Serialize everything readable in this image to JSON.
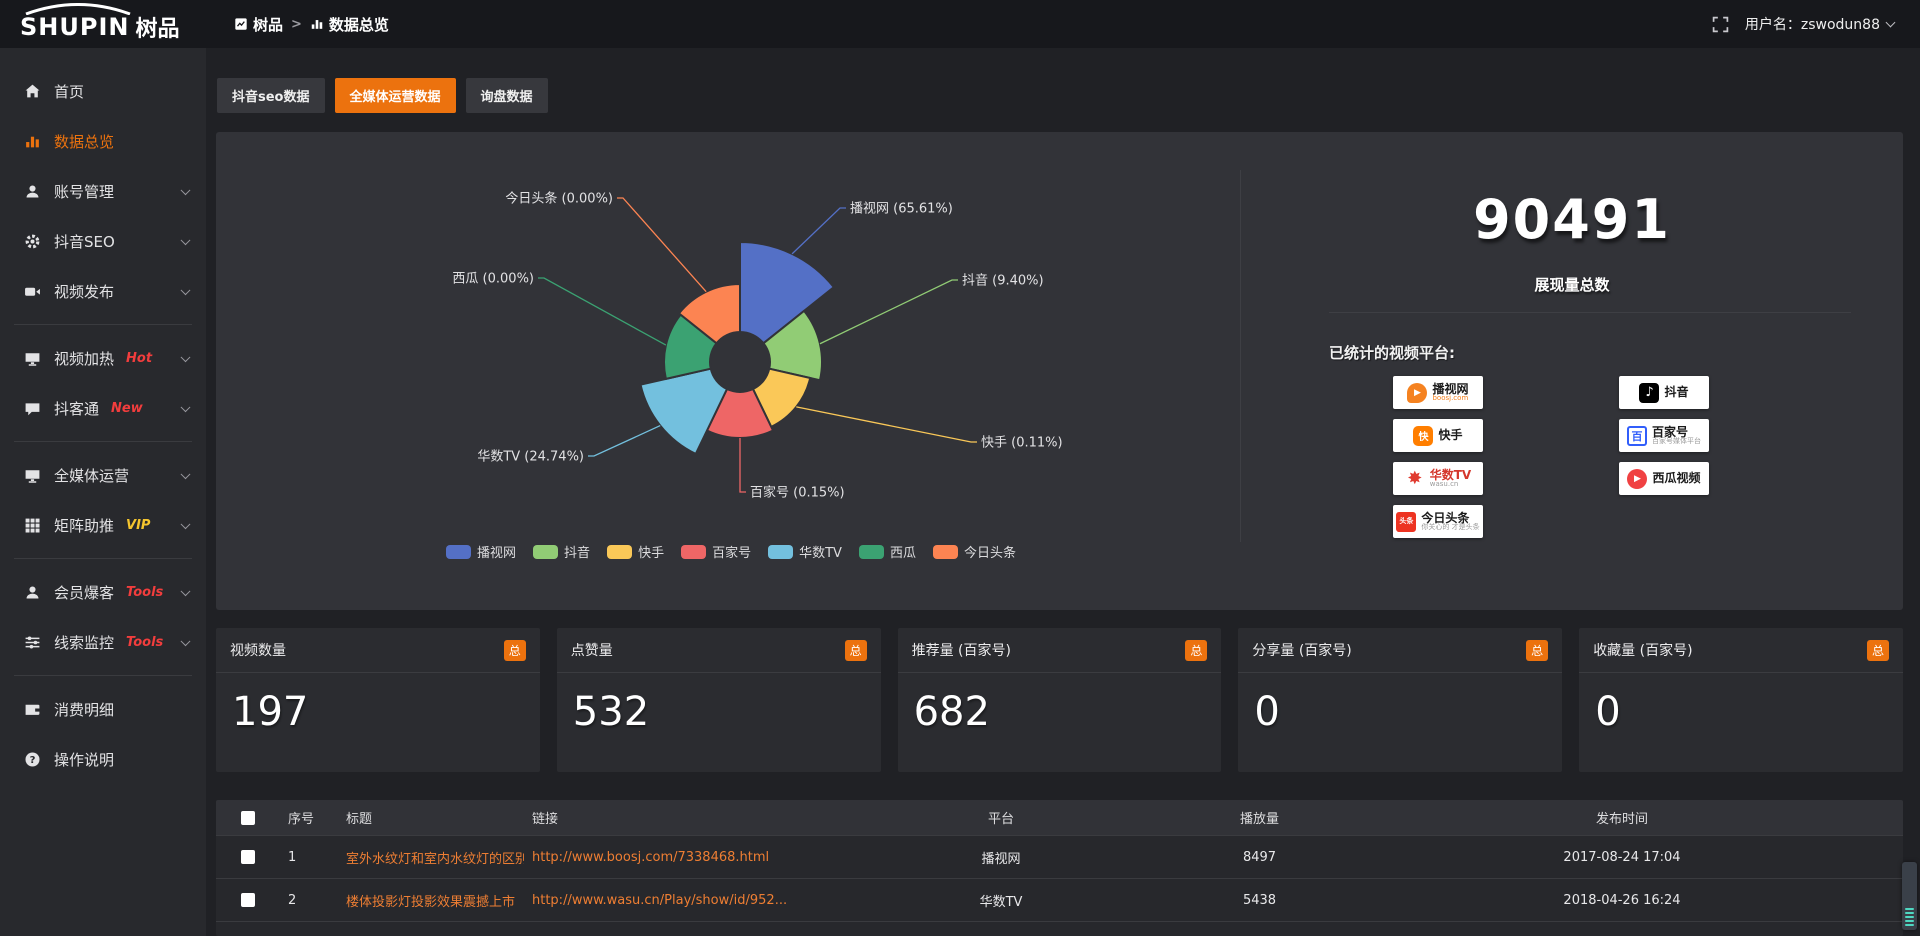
{
  "topbar": {
    "logo": {
      "text": "SHUPIN",
      "suffix": "树品"
    },
    "breadcrumb": [
      {
        "label": "树品",
        "icon": "report-icon"
      },
      {
        "label": "数据总览",
        "icon": "chart-icon"
      }
    ],
    "user_label": "用户名：zswodun88"
  },
  "sidebar": {
    "groups": [
      {
        "items": [
          {
            "icon": "home",
            "label": "首页",
            "active": false,
            "arrow": false
          },
          {
            "icon": "chart",
            "label": "数据总览",
            "active": true,
            "arrow": false
          },
          {
            "icon": "user",
            "label": "账号管理",
            "active": false,
            "arrow": true
          },
          {
            "icon": "gear",
            "label": "抖音SEO",
            "active": false,
            "arrow": true
          },
          {
            "icon": "video",
            "label": "视频发布",
            "active": false,
            "arrow": true
          }
        ]
      },
      {
        "items": [
          {
            "icon": "monitor",
            "label": "视频加热",
            "tag": "Hot",
            "tag_color": "#f23d3d",
            "arrow": true
          },
          {
            "icon": "comment",
            "label": "抖客通",
            "tag": "New",
            "tag_color": "#f23d3d",
            "arrow": true
          }
        ]
      },
      {
        "items": [
          {
            "icon": "monitor",
            "label": "全媒体运营",
            "arrow": true
          },
          {
            "icon": "grid",
            "label": "矩阵助推",
            "tag": "VIP",
            "tag_color": "#f5c52e",
            "arrow": true
          }
        ]
      },
      {
        "items": [
          {
            "icon": "user",
            "label": "会员爆客",
            "tag": "Tools",
            "tag_color": "#f23d3d",
            "arrow": true
          },
          {
            "icon": "sliders",
            "label": "线索监控",
            "tag": "Tools",
            "tag_color": "#f23d3d",
            "arrow": true
          }
        ]
      },
      {
        "items": [
          {
            "icon": "wallet",
            "label": "消费明细"
          },
          {
            "icon": "question",
            "label": "操作说明"
          }
        ]
      }
    ]
  },
  "tabs": [
    {
      "label": "抖音seo数据",
      "active": false
    },
    {
      "label": "全媒体运营数据",
      "active": true
    },
    {
      "label": "询盘数据",
      "active": false
    }
  ],
  "chart_data": {
    "type": "pie",
    "rose": true,
    "title": "",
    "legend_position": "bottom",
    "slices": [
      {
        "name": "播视网",
        "pct": 65.61,
        "color": "#5470c6"
      },
      {
        "name": "抖音",
        "pct": 9.4,
        "color": "#91cc75"
      },
      {
        "name": "快手",
        "pct": 0.11,
        "color": "#fac858"
      },
      {
        "name": "百家号",
        "pct": 0.15,
        "color": "#ee6666"
      },
      {
        "name": "华数TV",
        "pct": 24.74,
        "color": "#73c0de"
      },
      {
        "name": "西瓜",
        "pct": 0.0,
        "color": "#3ba272"
      },
      {
        "name": "今日头条",
        "pct": 0.0,
        "color": "#fc8452"
      }
    ]
  },
  "summary": {
    "total_value": "90491",
    "total_label": "展现量总数",
    "platforms_title": "已统计的视频平台:",
    "platforms": [
      {
        "name": "播视网",
        "sub": "boosj.com",
        "icon": "boosj"
      },
      {
        "name": "抖音",
        "icon": "douyin"
      },
      {
        "name": "快手",
        "icon": "kuaishou"
      },
      {
        "name": "百家号",
        "sub": "百家号媒体平台",
        "icon": "baijiahao"
      },
      {
        "name": "华数TV",
        "sub": "wasu.cn",
        "icon": "wasu"
      },
      {
        "name": "西瓜视频",
        "icon": "xigua"
      },
      {
        "name": "今日头条",
        "sub": "你关心的 才是头条",
        "icon": "toutiao"
      }
    ]
  },
  "stat_cards": [
    {
      "label": "视频数量",
      "badge": "总",
      "value": "197"
    },
    {
      "label": "点赞量",
      "badge": "总",
      "value": "532"
    },
    {
      "label": "推荐量 (百家号)",
      "badge": "总",
      "value": "682"
    },
    {
      "label": "分享量 (百家号)",
      "badge": "总",
      "value": "0"
    },
    {
      "label": "收藏量 (百家号)",
      "badge": "总",
      "value": "0"
    }
  ],
  "table": {
    "headers": [
      "序号",
      "标题",
      "链接",
      "平台",
      "播放量",
      "发布时间"
    ],
    "rows": [
      {
        "no": "1",
        "title": "室外水纹灯和室内水纹灯的区别和简介",
        "link": "http://www.boosj.com/7338468.html",
        "platform": "播视网",
        "plays": "8497",
        "time": "2017-08-24 17:04"
      },
      {
        "no": "2",
        "title": "楼体投影灯投影效果震撼上市",
        "link": "http://www.wasu.cn/Play/show/id/952...",
        "platform": "华数TV",
        "plays": "5438",
        "time": "2018-04-26 16:24"
      }
    ]
  },
  "colors": {
    "accent": "#ec720e",
    "link": "#ee7e33",
    "panel": "#323338"
  }
}
